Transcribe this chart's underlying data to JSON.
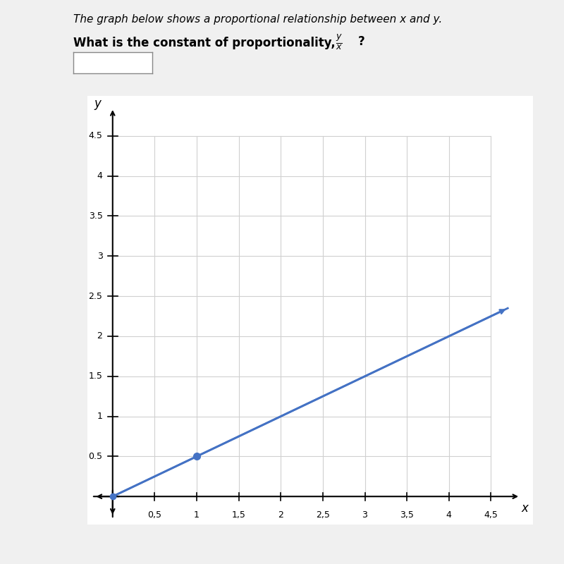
{
  "title_text": "The graph below shows a proportional relationship between x and y.",
  "line_color": "#4472c4",
  "dot_color": "#4472c4",
  "dot_x": 1.0,
  "dot_y": 0.5,
  "slope": 0.5,
  "x_end": 4.7,
  "x_ticks": [
    0.5,
    1.0,
    1.5,
    2.0,
    2.5,
    3.0,
    3.5,
    4.0,
    4.5
  ],
  "x_tick_labels": [
    "0,5",
    "1",
    "1,5",
    "2",
    "2,5",
    "3",
    "3,5",
    "4",
    "4,5"
  ],
  "y_ticks": [
    0.5,
    1.0,
    1.5,
    2.0,
    2.5,
    3.0,
    3.5,
    4.0,
    4.5
  ],
  "y_tick_labels": [
    "0.5",
    "1",
    "1.5",
    "2",
    "2.5",
    "3",
    "3.5",
    "4",
    "4.5"
  ],
  "xlim": [
    -0.3,
    5.0
  ],
  "ylim": [
    -0.35,
    5.0
  ],
  "grid_color": "#d0d0d0",
  "bg_color": "#f0f0f0",
  "plot_bg": "#ffffff",
  "title_fontsize": 11,
  "question_fontsize": 12,
  "tick_fontsize": 9,
  "axis_label_fontsize": 12
}
